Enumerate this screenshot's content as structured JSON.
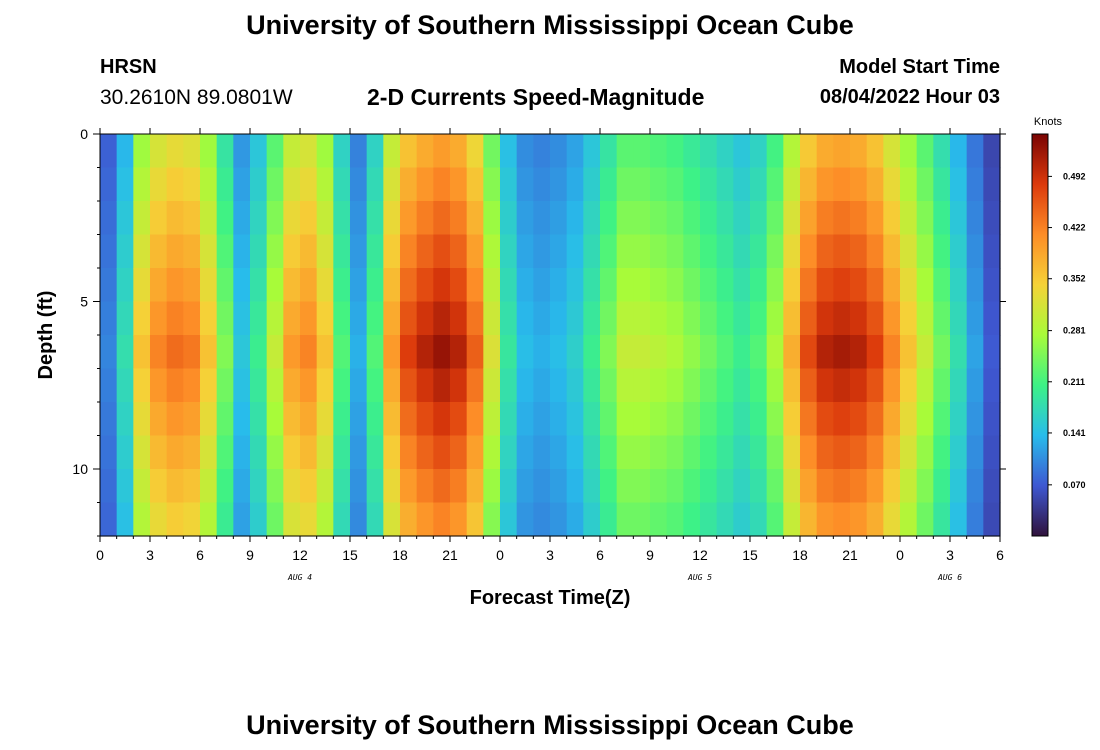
{
  "header": {
    "title": "University of Southern Mississippi Ocean Cube",
    "station": "HRSN",
    "coords": "30.2610N  89.0801W",
    "chart_heading": "2-D Currents Speed-Magnitude",
    "model_start_label": "Model Start Time",
    "model_start_value": "08/04/2022 Hour 03"
  },
  "footer": {
    "title": "University of Southern Mississippi Ocean Cube"
  },
  "chart_data": {
    "type": "heatmap",
    "xlabel": "Forecast Time(Z)",
    "ylabel": "Depth (ft)",
    "x_ticks": [
      "0",
      "3",
      "6",
      "9",
      "12",
      "15",
      "18",
      "21",
      "0",
      "3",
      "6",
      "9",
      "12",
      "15",
      "18",
      "21",
      "0",
      "3",
      "6"
    ],
    "day_labels": [
      {
        "hours": 12,
        "label": "AUG 4"
      },
      {
        "hours": 36,
        "label": "AUG 5"
      },
      {
        "hours": 51,
        "label": "AUG 6"
      }
    ],
    "y_ticks": [
      0,
      5,
      10
    ],
    "xlim": [
      0,
      54
    ],
    "ylim": [
      0,
      12
    ],
    "colorbar": {
      "unit": "Knots",
      "min": 0.0,
      "max": 0.55,
      "ticks": [
        "0.070",
        "0.141",
        "0.211",
        "0.281",
        "0.352",
        "0.422",
        "0.492"
      ],
      "tick_values": [
        0.07,
        0.141,
        0.211,
        0.281,
        0.352,
        0.422,
        0.492
      ],
      "colors": [
        "#30123b",
        "#3e58d2",
        "#28bceb",
        "#3df286",
        "#a8fb39",
        "#f5d237",
        "#fd8d27",
        "#dc3a0c",
        "#7a0403"
      ]
    },
    "depths_ft": [
      0.5,
      1.5,
      2.5,
      3.5,
      4.5,
      5.5,
      6.5,
      7.5,
      8.5,
      9.5,
      10.5,
      11.5
    ],
    "time_profile": {
      "hours": [
        0,
        1,
        2,
        3,
        4,
        5,
        6,
        7,
        8,
        9,
        10,
        11,
        12,
        13,
        14,
        15,
        16,
        17,
        18,
        19,
        20,
        21,
        22,
        23,
        24,
        25,
        26,
        27,
        28,
        29,
        30,
        31,
        32,
        33,
        34,
        35,
        36,
        37,
        38,
        39,
        40,
        41,
        42,
        43,
        44,
        45,
        46,
        47,
        48,
        49,
        50,
        51,
        52,
        53,
        54
      ],
      "speed_knots": [
        0.1,
        0.18,
        0.36,
        0.42,
        0.44,
        0.43,
        0.36,
        0.25,
        0.15,
        0.2,
        0.3,
        0.4,
        0.42,
        0.36,
        0.22,
        0.13,
        0.22,
        0.4,
        0.48,
        0.51,
        0.53,
        0.51,
        0.45,
        0.32,
        0.19,
        0.14,
        0.13,
        0.14,
        0.16,
        0.2,
        0.25,
        0.3,
        0.3,
        0.29,
        0.28,
        0.26,
        0.24,
        0.22,
        0.2,
        0.22,
        0.28,
        0.38,
        0.47,
        0.51,
        0.52,
        0.51,
        0.48,
        0.42,
        0.36,
        0.3,
        0.24,
        0.18,
        0.12,
        0.07,
        0.05
      ]
    }
  }
}
